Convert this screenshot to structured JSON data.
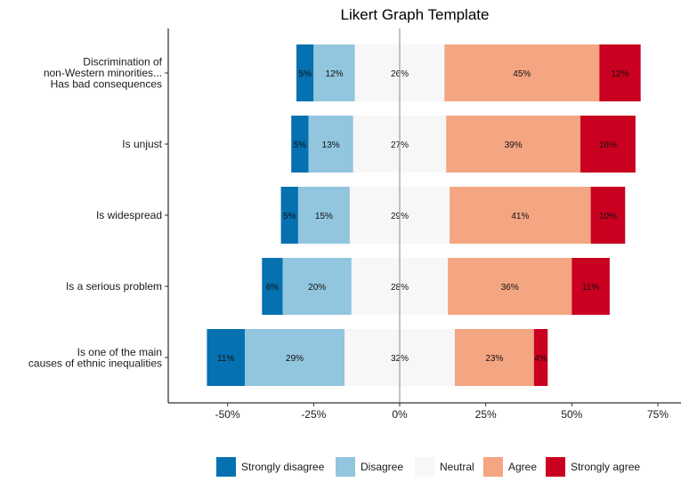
{
  "chart_data": {
    "type": "bar",
    "orientation": "horizontal-diverging",
    "title": "Likert Graph Template",
    "xlabel": "",
    "ylabel": "",
    "xlim": [
      -0.67,
      0.75
    ],
    "x_ticks": [
      -0.5,
      -0.25,
      0,
      0.25,
      0.5,
      0.75
    ],
    "x_tick_labels": [
      "-50%",
      "-25%",
      "0%",
      "25%",
      "50%",
      "75%"
    ],
    "grid": false,
    "legend_position": "bottom",
    "categories": [
      "Discrimination of\nnon-Western minorities...\nHas bad consequences",
      "Is unjust",
      "Is widespread",
      "Is a serious problem",
      "Is one of the main\ncauses of ethnic inequalities"
    ],
    "series": [
      {
        "name": "Strongly disagree",
        "color": "#0571b0",
        "values": [
          5,
          5,
          5,
          6,
          11
        ],
        "labels": [
          "5%",
          "5%",
          "5%",
          "6%",
          "11%"
        ]
      },
      {
        "name": "Disagree",
        "color": "#92c5de",
        "values": [
          12,
          13,
          15,
          20,
          29
        ],
        "labels": [
          "12%",
          "13%",
          "15%",
          "20%",
          "29%"
        ]
      },
      {
        "name": "Neutral",
        "color": "#f7f7f7",
        "values": [
          26,
          27,
          29,
          28,
          32
        ],
        "labels": [
          "26%",
          "27%",
          "29%",
          "28%",
          "32%"
        ]
      },
      {
        "name": "Agree",
        "color": "#f4a582",
        "values": [
          45,
          39,
          41,
          36,
          23
        ],
        "labels": [
          "45%",
          "39%",
          "41%",
          "36%",
          "23%"
        ]
      },
      {
        "name": "Strongly agree",
        "color": "#ca0020",
        "values": [
          12,
          16,
          10,
          11,
          4
        ],
        "labels": [
          "12%",
          "16%",
          "10%",
          "11%",
          "4%"
        ]
      }
    ]
  }
}
